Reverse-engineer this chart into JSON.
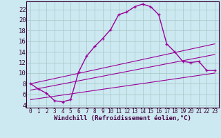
{
  "background_color": "#cce8f0",
  "grid_color": "#aacccc",
  "line_color": "#990099",
  "xlabel": "Windchill (Refroidissement éolien,°C)",
  "xlabel_fontsize": 6.5,
  "ylabel_values": [
    4,
    6,
    8,
    10,
    12,
    14,
    16,
    18,
    20,
    22
  ],
  "xlim": [
    -0.5,
    23.5
  ],
  "ylim": [
    3.5,
    23.5
  ],
  "xtick_fontsize": 5.5,
  "ytick_fontsize": 6.5,
  "main_x": [
    0,
    1,
    2,
    3,
    4,
    5,
    6,
    7,
    8,
    9,
    10,
    11,
    12,
    13,
    14,
    15,
    16,
    17,
    18,
    19,
    20,
    21,
    22,
    23
  ],
  "main_y": [
    8.0,
    7.0,
    6.2,
    4.8,
    4.6,
    5.0,
    10.2,
    13.2,
    15.0,
    16.5,
    18.2,
    21.0,
    21.5,
    22.5,
    23.0,
    22.5,
    21.0,
    15.5,
    14.0,
    12.2,
    12.0,
    12.2,
    10.5,
    10.5
  ],
  "upper_line_x": [
    0,
    23
  ],
  "upper_line_y": [
    8.0,
    15.5
  ],
  "middle_line_x": [
    0,
    23
  ],
  "middle_line_y": [
    6.8,
    13.5
  ],
  "lower_line_x": [
    0,
    23
  ],
  "lower_line_y": [
    5.0,
    10.0
  ]
}
